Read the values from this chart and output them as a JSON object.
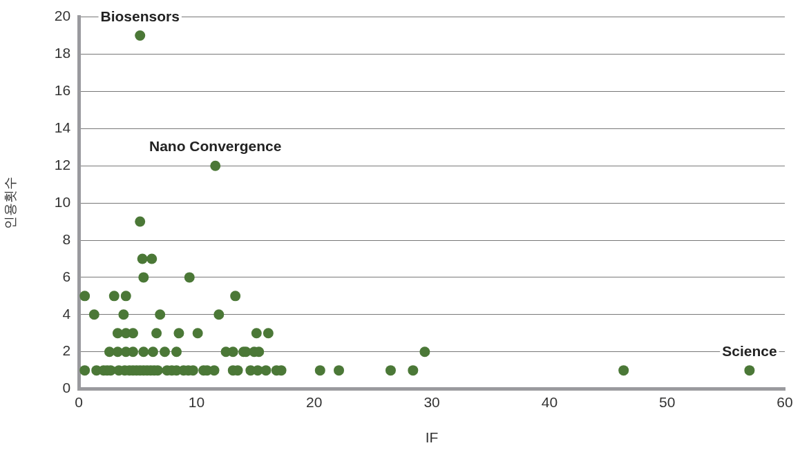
{
  "chart_data": {
    "type": "scatter",
    "xlabel": "IF",
    "ylabel": "인용횟수",
    "xlim": [
      0,
      60
    ],
    "xticks": [
      0,
      10,
      20,
      30,
      40,
      50,
      60
    ],
    "ylim": [
      0,
      20
    ],
    "yticks": [
      0,
      2,
      4,
      6,
      8,
      10,
      12,
      14,
      16,
      18,
      20
    ],
    "grid": "y",
    "marker": "circle",
    "series": [
      {
        "color": "#4b7837",
        "x": [
          0.5,
          1.5,
          2.1,
          2.4,
          2.7,
          3.4,
          3.9,
          4.3,
          4.6,
          4.9,
          5.2,
          5.5,
          5.8,
          6.1,
          6.4,
          6.7,
          7.5,
          7.9,
          8.3,
          8.9,
          9.3,
          9.7,
          10.6,
          10.9,
          11.5,
          13.1,
          13.5,
          14.6,
          15.2,
          15.9,
          16.8,
          17.2,
          20.5,
          22.1,
          26.5,
          28.4,
          46.3,
          57.0,
          2.6,
          3.3,
          4.0,
          4.6,
          5.5,
          6.3,
          7.3,
          8.3,
          12.5,
          13.1,
          14.0,
          14.2,
          14.9,
          15.3,
          29.4,
          3.3,
          4.0,
          4.6,
          6.6,
          8.5,
          10.1,
          15.1,
          16.1,
          1.3,
          3.8,
          6.9,
          11.9,
          0.5,
          3.0,
          4.0,
          13.3,
          5.5,
          9.4,
          5.4,
          6.2,
          5.2,
          11.6,
          5.2
        ],
        "values": [
          1,
          1,
          1,
          1,
          1,
          1,
          1,
          1,
          1,
          1,
          1,
          1,
          1,
          1,
          1,
          1,
          1,
          1,
          1,
          1,
          1,
          1,
          1,
          1,
          1,
          1,
          1,
          1,
          1,
          1,
          1,
          1,
          1,
          1,
          1,
          1,
          1,
          1,
          2,
          2,
          2,
          2,
          2,
          2,
          2,
          2,
          2,
          2,
          2,
          2,
          2,
          2,
          2,
          3,
          3,
          3,
          3,
          3,
          3,
          3,
          3,
          4,
          4,
          4,
          4,
          5,
          5,
          5,
          5,
          6,
          6,
          7,
          7,
          9,
          12,
          19
        ]
      }
    ],
    "annotations": [
      {
        "text": "Biosensors",
        "x": 5.2,
        "y": 19
      },
      {
        "text": "Nano Convergence",
        "x": 11.6,
        "y": 12
      },
      {
        "text": "Science",
        "x": 57.0,
        "y": 1
      }
    ]
  }
}
